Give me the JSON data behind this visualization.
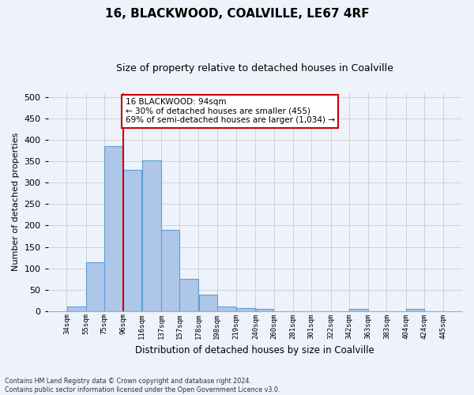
{
  "title": "16, BLACKWOOD, COALVILLE, LE67 4RF",
  "subtitle": "Size of property relative to detached houses in Coalville",
  "xlabel": "Distribution of detached houses by size in Coalville",
  "ylabel": "Number of detached properties",
  "bar_color": "#aec6e8",
  "bar_edgecolor": "#5a9fd4",
  "vline_color": "#cc0000",
  "annotation_text": "16 BLACKWOOD: 94sqm\n← 30% of detached houses are smaller (455)\n69% of semi-detached houses are larger (1,034) →",
  "annotation_box_color": "#cc0000",
  "bin_edges": [
    34,
    55,
    75,
    96,
    116,
    137,
    157,
    178,
    198,
    219,
    240,
    260,
    281,
    301,
    322,
    342,
    363,
    383,
    404,
    424,
    445
  ],
  "bar_heights": [
    11,
    114,
    385,
    331,
    352,
    190,
    75,
    38,
    11,
    7,
    4,
    0,
    0,
    0,
    0,
    5,
    0,
    0,
    5,
    0
  ],
  "ylim": [
    0,
    510
  ],
  "yticks": [
    0,
    50,
    100,
    150,
    200,
    250,
    300,
    350,
    400,
    450,
    500
  ],
  "footnote": "Contains HM Land Registry data © Crown copyright and database right 2024.\nContains public sector information licensed under the Open Government Licence v3.0.",
  "bg_color": "#eef2fb",
  "title_fontsize": 11,
  "subtitle_fontsize": 9
}
